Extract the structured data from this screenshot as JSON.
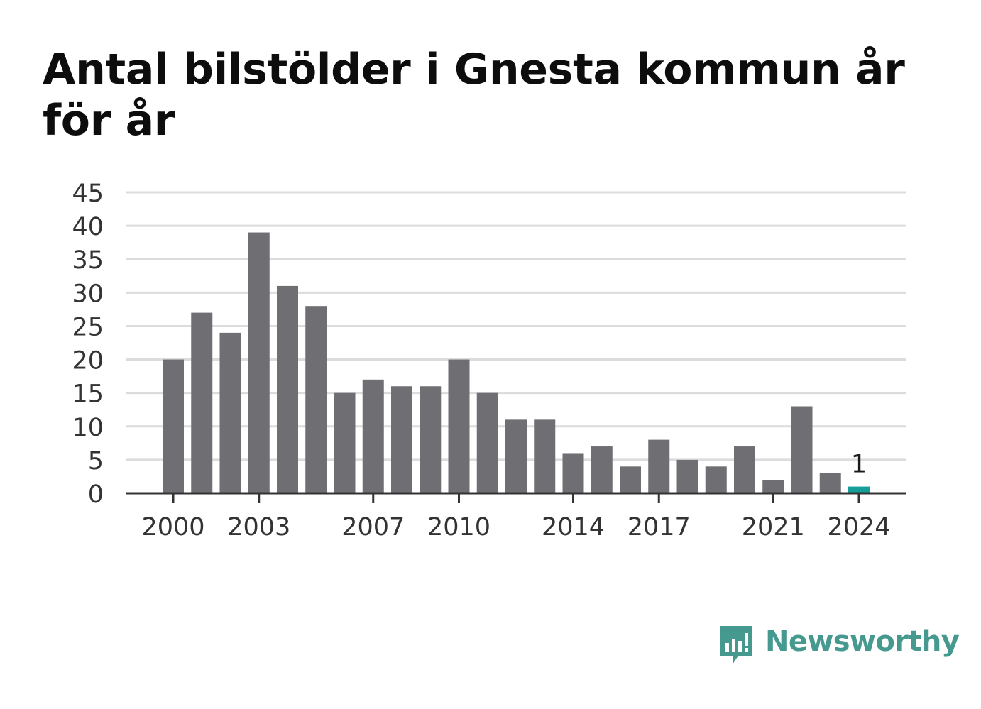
{
  "title": "Antal bilstölder i Gnesta kommun år för år",
  "brand": {
    "name": "Newsworthy",
    "color": "#45998f"
  },
  "colors": {
    "bar": "#6f6e73",
    "highlight": "#169e98",
    "grid": "#dcdcdc",
    "axis": "#333333",
    "tick_text": "#333333"
  },
  "chart_data": {
    "type": "bar",
    "title": "Antal bilstölder i Gnesta kommun år för år",
    "xlabel": "",
    "ylabel": "",
    "categories": [
      2000,
      2001,
      2002,
      2003,
      2004,
      2005,
      2006,
      2007,
      2008,
      2009,
      2010,
      2011,
      2012,
      2013,
      2014,
      2015,
      2016,
      2017,
      2018,
      2019,
      2020,
      2021,
      2022,
      2023,
      2024
    ],
    "values": [
      20,
      27,
      24,
      39,
      31,
      28,
      15,
      17,
      16,
      16,
      20,
      15,
      11,
      11,
      6,
      7,
      4,
      8,
      5,
      4,
      7,
      2,
      13,
      3,
      1
    ],
    "highlight_index": 24,
    "data_labels": [
      {
        "index": 24,
        "text": "1"
      }
    ],
    "ylim": [
      0,
      45
    ],
    "yticks": [
      0,
      5,
      10,
      15,
      20,
      25,
      30,
      35,
      40,
      45
    ],
    "xticks": [
      2000,
      2003,
      2007,
      2010,
      2014,
      2017,
      2021,
      2024
    ],
    "grid": true,
    "legend": "none"
  }
}
